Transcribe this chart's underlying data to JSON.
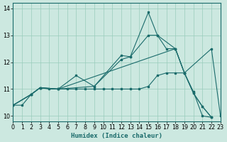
{
  "xlabel": "Humidex (Indice chaleur)",
  "xlim": [
    0,
    23
  ],
  "ylim": [
    9.8,
    14.2
  ],
  "yticks": [
    10,
    11,
    12,
    13,
    14
  ],
  "xticks": [
    0,
    1,
    2,
    3,
    4,
    5,
    6,
    7,
    8,
    9,
    10,
    11,
    12,
    13,
    14,
    15,
    16,
    17,
    18,
    19,
    20,
    21,
    22,
    23
  ],
  "bg_color": "#cce8e0",
  "grid_color": "#99ccbb",
  "line_color": "#1a6b6b",
  "line1_x": [
    0,
    1,
    2,
    3,
    4,
    5,
    6,
    7,
    8,
    9,
    10,
    11,
    12,
    13,
    14,
    15,
    16,
    17,
    18,
    19,
    20,
    21,
    22
  ],
  "line1_y": [
    10.4,
    10.4,
    10.8,
    11.05,
    11.0,
    11.0,
    11.0,
    11.0,
    11.0,
    11.0,
    11.0,
    11.0,
    11.0,
    11.0,
    11.0,
    11.1,
    11.5,
    11.6,
    11.6,
    11.6,
    10.9,
    10.0,
    9.95
  ],
  "line2_x": [
    0,
    2,
    3,
    5,
    7,
    9,
    12,
    13,
    15,
    16,
    18,
    19,
    20,
    21,
    22
  ],
  "line2_y": [
    10.4,
    10.8,
    11.05,
    11.0,
    11.5,
    11.1,
    12.1,
    12.2,
    13.85,
    13.0,
    12.5,
    11.6,
    10.85,
    10.35,
    9.95
  ],
  "line3_x": [
    0,
    2,
    3,
    5,
    9,
    12,
    13,
    15,
    16,
    17,
    18,
    19,
    20,
    21,
    22
  ],
  "line3_y": [
    10.4,
    10.8,
    11.05,
    11.0,
    11.1,
    12.25,
    12.2,
    13.0,
    13.0,
    12.5,
    12.5,
    11.6,
    10.85,
    10.35,
    9.95
  ],
  "line4_x": [
    0,
    2,
    3,
    5,
    18,
    19,
    22,
    23
  ],
  "line4_y": [
    10.4,
    10.8,
    11.05,
    11.0,
    12.5,
    11.6,
    12.5,
    10.0
  ],
  "xlabel_fontsize": 6.5,
  "tick_fontsize": 5.8
}
